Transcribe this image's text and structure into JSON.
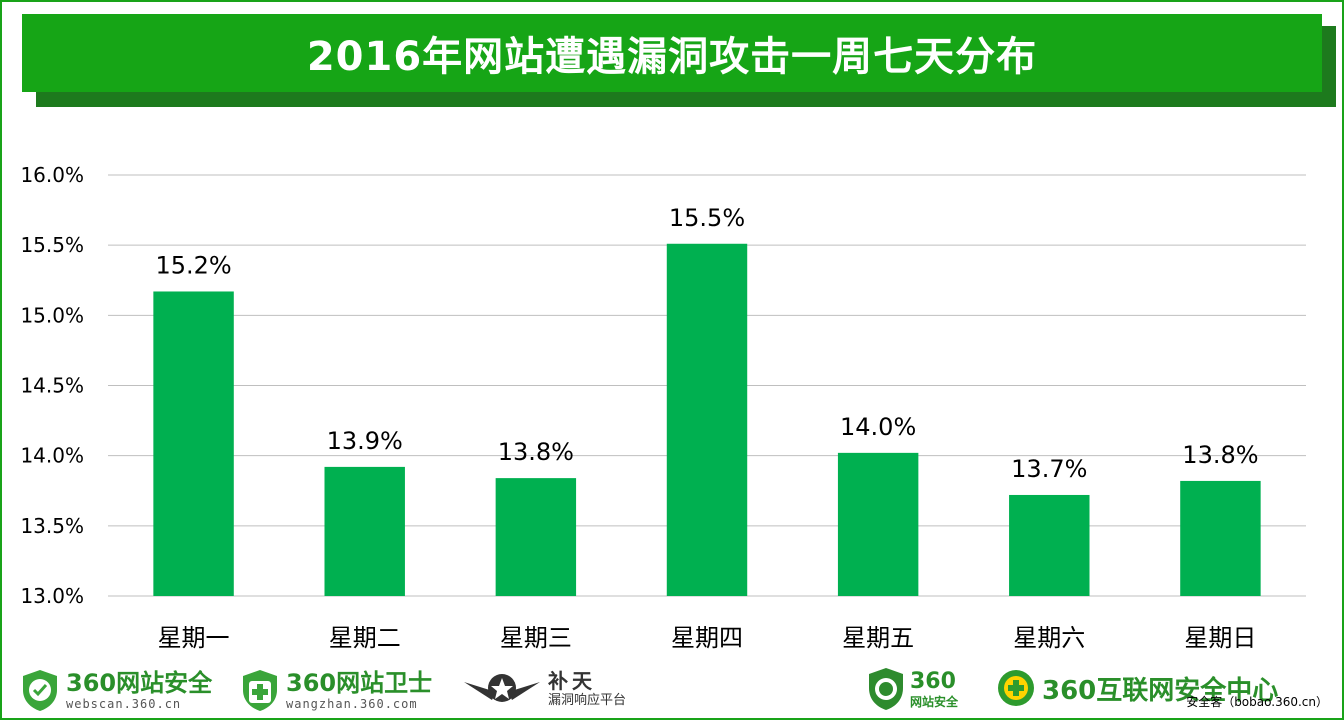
{
  "colors": {
    "frame": "#19a319",
    "title_bg": "#16a516",
    "title_shadow": "#1d7a1d",
    "bar": "#00b050",
    "grid": "#bfbfbf",
    "logo_green": "#2a8f2a"
  },
  "chart_data": {
    "type": "bar",
    "title": "2016年网站遭遇漏洞攻击一周七天分布",
    "categories": [
      "星期一",
      "星期二",
      "星期三",
      "星期四",
      "星期五",
      "星期六",
      "星期日"
    ],
    "values": [
      15.17,
      13.92,
      13.84,
      15.51,
      14.02,
      13.72,
      13.82
    ],
    "data_labels": [
      "15.2%",
      "13.9%",
      "13.8%",
      "15.5%",
      "14.0%",
      "13.7%",
      "13.8%"
    ],
    "ylim": [
      13.0,
      16.0
    ],
    "yticks": [
      13.0,
      13.5,
      14.0,
      14.5,
      15.0,
      15.5,
      16.0
    ],
    "ytick_labels": [
      "13.0%",
      "13.5%",
      "14.0%",
      "14.5%",
      "15.0%",
      "15.5%",
      "16.0%"
    ],
    "xlabel": "",
    "ylabel": "",
    "grid": true,
    "legend": "none"
  },
  "footer": {
    "logos": [
      {
        "main": "360网站安全",
        "sub": "webscan.360.cn",
        "icon": "shield-check-icon"
      },
      {
        "main": "360网站卫士",
        "sub": "wangzhan.360.com",
        "icon": "shield-plus-icon"
      },
      {
        "main": "补天",
        "sub": "漏洞响应平台",
        "icon": "star-wings-icon"
      },
      {
        "main": "360",
        "sub": "网站安全",
        "icon": "shield-globe-icon"
      },
      {
        "main": "360互联网安全中心",
        "sub": "",
        "icon": "globe-plus-icon"
      }
    ],
    "credit": "安全客（bobao.360.cn）"
  }
}
